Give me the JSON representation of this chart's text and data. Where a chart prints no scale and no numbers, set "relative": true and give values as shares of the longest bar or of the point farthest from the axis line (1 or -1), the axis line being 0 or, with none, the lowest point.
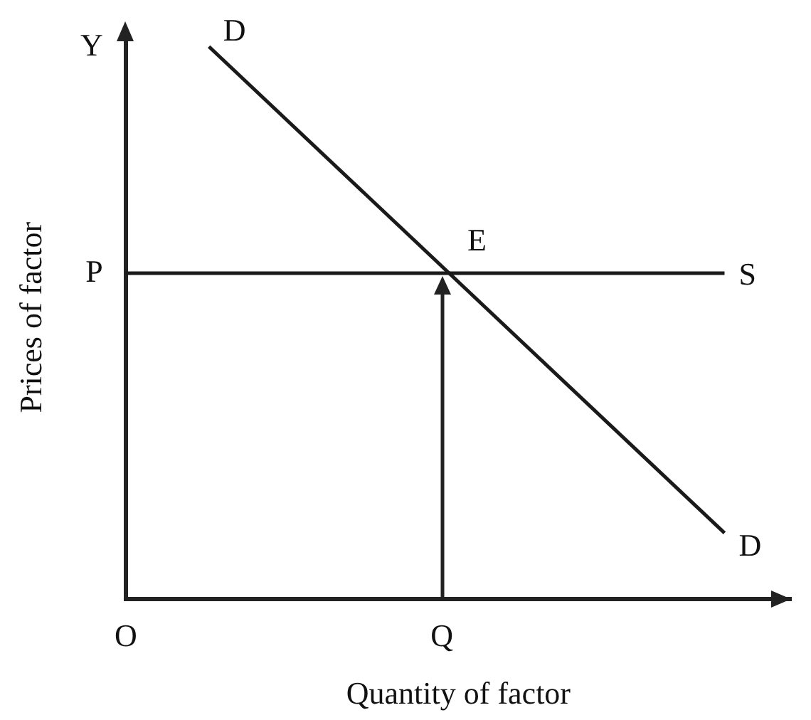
{
  "chart_data": {
    "type": "line",
    "relative": true,
    "xlabel": "Quantity of factor",
    "ylabel": "Prices of factor",
    "categories": [
      "O",
      null,
      null,
      null,
      null,
      null,
      null,
      null,
      null,
      null,
      null,
      null,
      null,
      null,
      null,
      null,
      null,
      null,
      null,
      "Q",
      null,
      null,
      null,
      null,
      null,
      null,
      null,
      null,
      null,
      null,
      null,
      null,
      null,
      null,
      null,
      null,
      null,
      null,
      null,
      null,
      null
    ],
    "series": [
      {
        "name": "D",
        "color": "#1a1a1a",
        "values": [
          null,
          null,
          null,
          null,
          null,
          1,
          null,
          null,
          null,
          null,
          null,
          null,
          null,
          null,
          null,
          null,
          null,
          null,
          null,
          null,
          null,
          null,
          null,
          null,
          null,
          null,
          null,
          null,
          null,
          null,
          null,
          null,
          null,
          null,
          null,
          null,
          0.12,
          null,
          null,
          null,
          null
        ]
      },
      {
        "name": "S",
        "color": "#1a1a1a",
        "values": [
          0.59,
          null,
          null,
          null,
          null,
          null,
          null,
          null,
          null,
          null,
          null,
          null,
          null,
          null,
          null,
          null,
          null,
          null,
          null,
          null,
          null,
          null,
          null,
          null,
          null,
          null,
          null,
          null,
          null,
          null,
          null,
          null,
          null,
          null,
          null,
          null,
          0.59,
          null,
          null,
          null,
          null
        ]
      }
    ],
    "annotations": [
      "D",
      {
        "text": "E",
        "x": "Q",
        "y": 0.59
      },
      "P",
      "Y"
    ],
    "grid": false,
    "legend": false
  }
}
